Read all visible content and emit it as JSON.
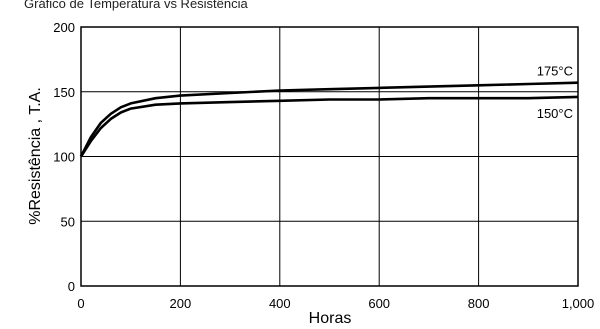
{
  "header_text": "Gráfico de Temperatura vs Resistência",
  "chart_data": {
    "type": "line",
    "title": "",
    "xlabel": "Horas",
    "ylabel": "%Resistência , T.A.",
    "xlim": [
      0,
      1000
    ],
    "ylim": [
      0,
      200
    ],
    "xticks": [
      0,
      200,
      400,
      600,
      800,
      1000
    ],
    "xtick_labels": [
      "0",
      "200",
      "400",
      "600",
      "800",
      "1,000"
    ],
    "yticks": [
      0,
      50,
      100,
      150,
      200
    ],
    "ytick_labels": [
      "0",
      "50",
      "100",
      "150",
      "200"
    ],
    "grid": true,
    "series": [
      {
        "name": "175°C",
        "x": [
          0,
          20,
          40,
          60,
          80,
          100,
          150,
          200,
          300,
          400,
          500,
          600,
          700,
          800,
          900,
          1000
        ],
        "y": [
          100,
          115,
          126,
          133,
          138,
          141,
          145,
          147,
          149,
          151,
          152,
          153,
          154,
          155,
          156,
          157
        ]
      },
      {
        "name": "150°C",
        "x": [
          0,
          20,
          40,
          60,
          80,
          100,
          150,
          200,
          300,
          400,
          500,
          600,
          700,
          800,
          900,
          1000
        ],
        "y": [
          100,
          112,
          122,
          129,
          134,
          137,
          140,
          141,
          142,
          143,
          144,
          144,
          145,
          145,
          145,
          146
        ]
      }
    ],
    "colors": {
      "line": "#000000",
      "grid": "#000000",
      "background": "#ffffff"
    }
  }
}
